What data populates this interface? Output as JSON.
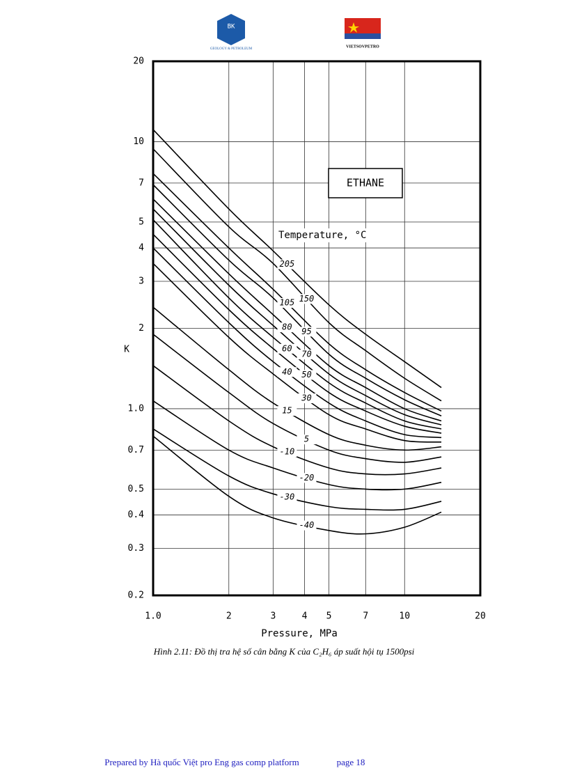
{
  "header": {
    "left_logo_text": "BK",
    "left_logo_caption": "GEOLOGY & PETROLEUM",
    "right_logo_caption": "VIETSOVPETRO"
  },
  "chart_data": {
    "type": "line",
    "title": "ETHANE",
    "legend_title": "Temperature, °C",
    "x_label": "Pressure, MPa",
    "y_label": "K",
    "x": [
      1,
      2,
      3,
      5,
      7,
      10,
      14
    ],
    "series": [
      {
        "name": "205",
        "color": "#000000",
        "values": [
          11.1,
          5.6,
          3.9,
          2.45,
          1.9,
          1.5,
          1.2
        ]
      },
      {
        "name": "150",
        "color": "#000000",
        "values": [
          9.4,
          4.8,
          3.5,
          2.1,
          1.65,
          1.3,
          1.07
        ]
      },
      {
        "name": "105",
        "color": "#000000",
        "values": [
          7.6,
          4.0,
          2.8,
          1.75,
          1.4,
          1.15,
          0.98
        ]
      },
      {
        "name": "95",
        "color": "#000000",
        "values": [
          6.9,
          3.6,
          2.6,
          1.6,
          1.3,
          1.08,
          0.94
        ]
      },
      {
        "name": "80",
        "color": "#000000",
        "values": [
          6.1,
          3.2,
          2.25,
          1.45,
          1.2,
          1.0,
          0.9
        ]
      },
      {
        "name": "70",
        "color": "#000000",
        "values": [
          5.6,
          2.9,
          2.05,
          1.35,
          1.12,
          0.95,
          0.87
        ]
      },
      {
        "name": "60",
        "color": "#000000",
        "values": [
          5.1,
          2.6,
          1.85,
          1.25,
          1.05,
          0.9,
          0.84
        ]
      },
      {
        "name": "50",
        "color": "#000000",
        "values": [
          4.5,
          2.35,
          1.68,
          1.15,
          0.98,
          0.86,
          0.81
        ]
      },
      {
        "name": "40",
        "color": "#000000",
        "values": [
          4.0,
          2.1,
          1.5,
          1.05,
          0.9,
          0.8,
          0.78
        ]
      },
      {
        "name": "30",
        "color": "#000000",
        "values": [
          3.5,
          1.85,
          1.35,
          0.95,
          0.84,
          0.76,
          0.75
        ]
      },
      {
        "name": "15",
        "color": "#000000",
        "values": [
          2.4,
          1.4,
          1.05,
          0.8,
          0.73,
          0.7,
          0.72
        ]
      },
      {
        "name": "5",
        "color": "#000000",
        "values": [
          1.9,
          1.15,
          0.88,
          0.7,
          0.65,
          0.63,
          0.66
        ]
      },
      {
        "name": "-10",
        "color": "#000000",
        "values": [
          1.45,
          0.9,
          0.72,
          0.6,
          0.57,
          0.57,
          0.6
        ]
      },
      {
        "name": "-20",
        "color": "#000000",
        "values": [
          1.07,
          0.7,
          0.6,
          0.52,
          0.5,
          0.5,
          0.53
        ]
      },
      {
        "name": "-30",
        "color": "#000000",
        "values": [
          0.84,
          0.56,
          0.48,
          0.43,
          0.42,
          0.42,
          0.45
        ]
      },
      {
        "name": "-40",
        "color": "#000000",
        "values": [
          0.79,
          0.47,
          0.39,
          0.35,
          0.34,
          0.36,
          0.41
        ]
      }
    ],
    "xlim": [
      1,
      20
    ],
    "ylim": [
      0.2,
      20
    ],
    "xticks": [
      {
        "value": 1,
        "label": "1.0"
      },
      2,
      3,
      4,
      5,
      7,
      10,
      20
    ],
    "yticks": [
      0.2,
      0.3,
      0.4,
      0.5,
      0.7,
      {
        "value": 1,
        "label": "1.0"
      },
      2,
      3,
      4,
      5,
      7,
      10,
      20
    ],
    "log_x": true,
    "log_y": true,
    "grid": true
  },
  "caption": "Hình 2.11: Đồ thị tra hệ số cân bằng K của C₂H₆ áp suất hội tụ 1500psi",
  "footer": {
    "text": "Prepared by Hà quốc Việt pro Eng gas comp platform",
    "page": "page 18"
  }
}
